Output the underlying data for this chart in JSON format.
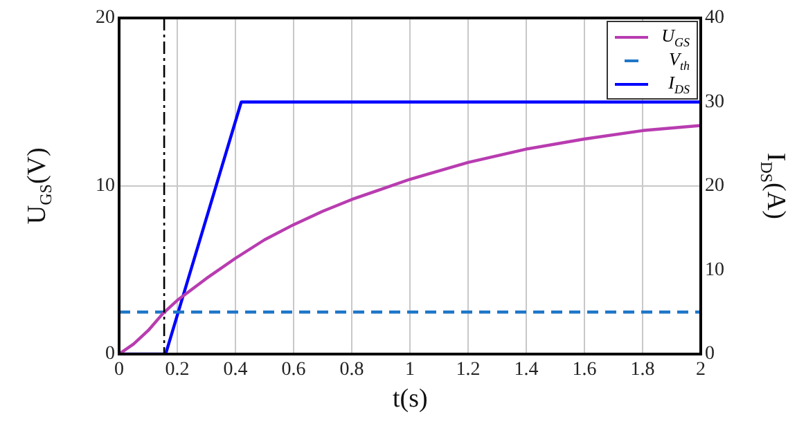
{
  "chart_data": {
    "type": "line",
    "xlabel": "t(s)",
    "ylabel": "U$_{GS}$(V)",
    "y2label": "I$_{DS}$(A)",
    "series": [
      {
        "name": "U$_{GS}$",
        "color": "#b83cb0",
        "x": [
          0,
          0.05,
          0.1,
          0.15,
          0.2,
          0.3,
          0.4,
          0.5,
          0.6,
          0.7,
          0.8,
          0.9,
          1.0,
          1.2,
          1.4,
          1.6,
          1.8,
          2.0
        ],
        "values": [
          0,
          0.6,
          1.4,
          2.4,
          3.2,
          4.5,
          5.7,
          6.8,
          7.7,
          8.5,
          9.2,
          9.8,
          10.4,
          11.4,
          12.2,
          12.8,
          13.3,
          13.6
        ]
      },
      {
        "name": "V$_{th}$",
        "color": "#1f77c8",
        "line_style": "dashed",
        "x": [
          0,
          2
        ],
        "values": [
          2.5,
          2.5
        ]
      },
      {
        "name": "I$_{DS}$",
        "color": "#0000ff",
        "axis": "y2",
        "x": [
          0,
          0.16,
          0.42,
          2
        ],
        "values": [
          0,
          0,
          30,
          30
        ]
      }
    ],
    "xlim": [
      0,
      2
    ],
    "xticks": [
      0,
      0.2,
      0.4,
      0.6,
      0.8,
      1,
      1.2,
      1.4,
      1.6,
      1.8,
      2
    ],
    "ylim": [
      0,
      20
    ],
    "yticks": [
      0,
      10,
      20
    ],
    "y2lim": [
      0,
      40
    ],
    "y2ticks": [
      0,
      10,
      20,
      30,
      40
    ],
    "ref_lines": [
      {
        "axis": "x",
        "value": 0.155,
        "color": "#000000",
        "line_style": "dashed"
      }
    ],
    "grid": true,
    "legend": "top right",
    "marker": "none",
    "line_style": "solid"
  }
}
